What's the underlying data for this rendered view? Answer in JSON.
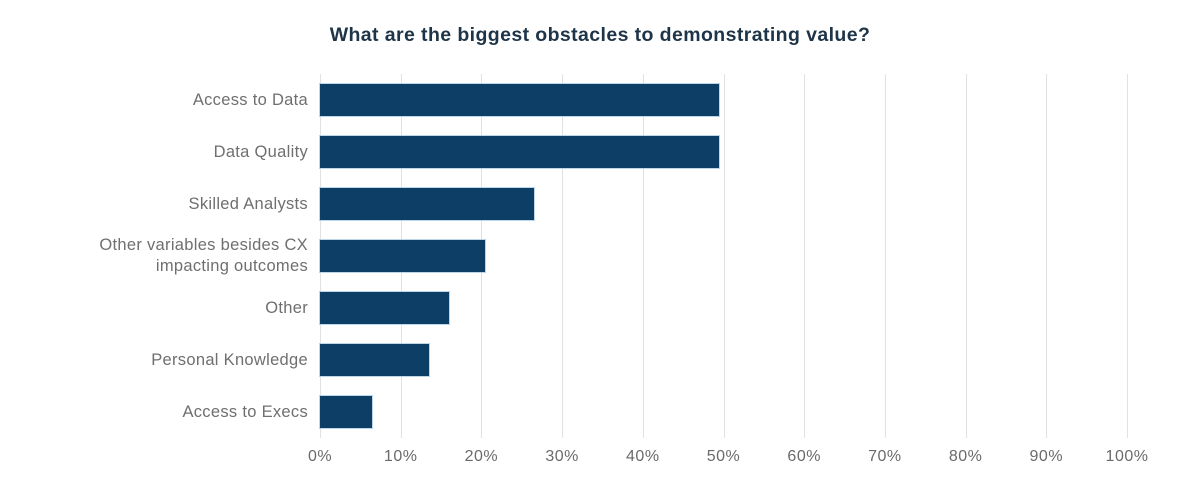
{
  "title": "What are the biggest obstacles to demonstrating value?",
  "colors": {
    "background": "#ffffff",
    "bar_fill": "#0d3f66",
    "bar_stroke": "#a8c9e0",
    "title_text": "#1e3448",
    "label_text": "#6f6f6f",
    "tick_text": "#6a6a6a",
    "gridline": "#e1e1e1"
  },
  "chart_data": {
    "type": "bar",
    "orientation": "horizontal",
    "title": "What are the biggest obstacles to demonstrating value?",
    "categories": [
      "Access to Data",
      "Data Quality",
      "Skilled Analysts",
      "Other variables besides CX\nimpacting outcomes",
      "Other",
      "Personal Knowledge",
      "Access to Execs"
    ],
    "values": [
      49.5,
      49.5,
      26.5,
      20.5,
      16,
      13.5,
      6.5
    ],
    "unit": "%",
    "xlabel": "",
    "ylabel": "",
    "xlim": [
      0,
      100
    ],
    "x_ticks": [
      "0%",
      "10%",
      "20%",
      "30%",
      "40%",
      "50%",
      "60%",
      "70%",
      "80%",
      "90%",
      "100%"
    ],
    "x_tick_positions": [
      0,
      10,
      20,
      30,
      40,
      50,
      60,
      70,
      80,
      90,
      100
    ],
    "grid": "vertical-only",
    "legend": "none",
    "data_labels": "none"
  }
}
